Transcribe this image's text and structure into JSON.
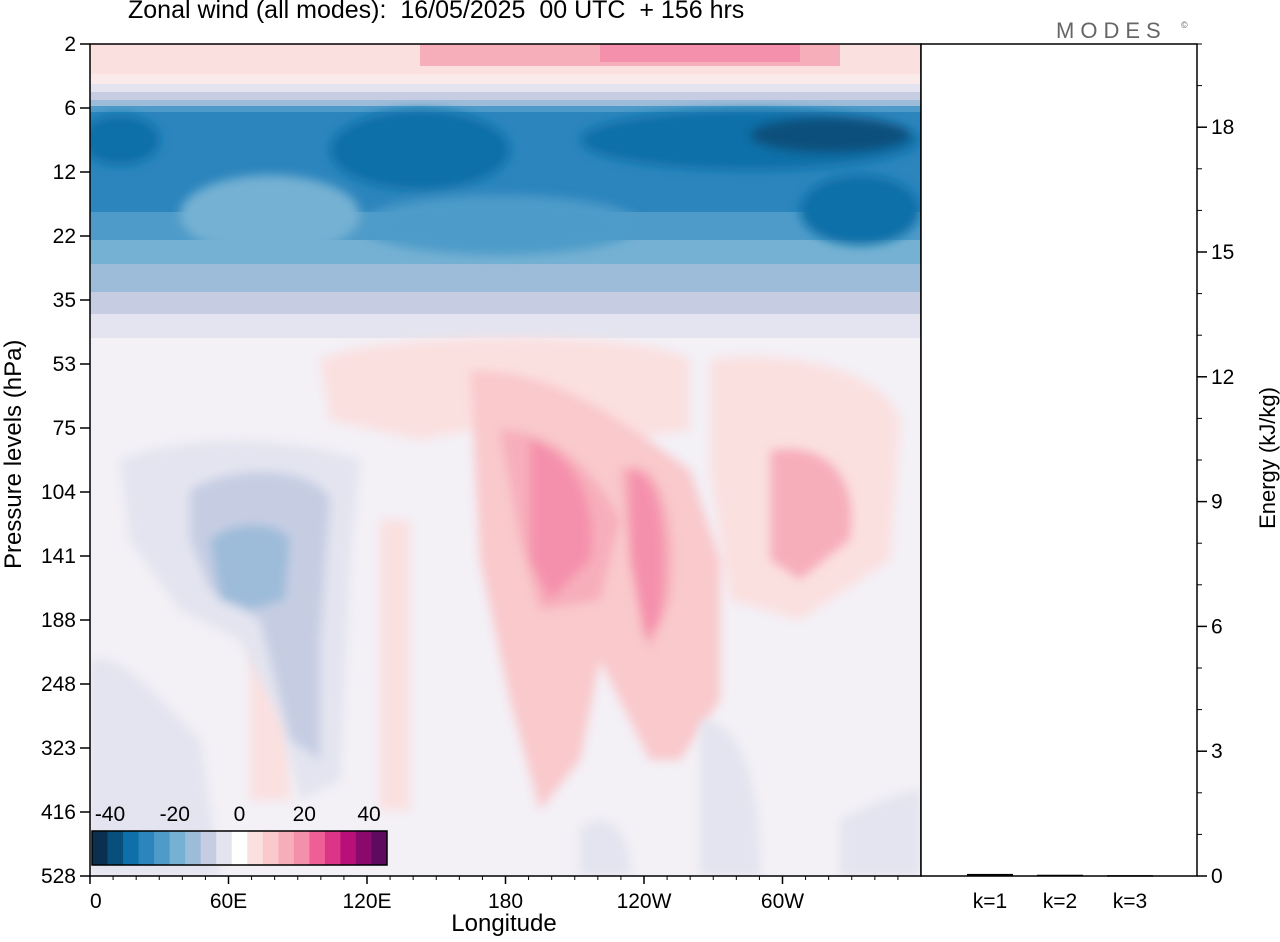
{
  "chart_data": [
    {
      "type": "heatmap",
      "title": "Zonal wind (all modes):  16/05/2025  00 UTC  + 156 hrs",
      "xlabel": "Longitude",
      "ylabel": "Pressure levels (hPa)",
      "x_ticks": [
        "0",
        "60E",
        "120E",
        "180",
        "120W",
        "60W"
      ],
      "y_ticks": [
        "2",
        "6",
        "12",
        "22",
        "35",
        "53",
        "75",
        "104",
        "141",
        "188",
        "248",
        "323",
        "416",
        "528"
      ],
      "colorbar": {
        "tick_labels": [
          "-40",
          "-20",
          "0",
          "20",
          "40"
        ],
        "colors": [
          "#0b2f4f",
          "#094f7b",
          "#0f6fa8",
          "#2c85bd",
          "#4e9bc9",
          "#75b1d3",
          "#9dbcd9",
          "#c6cde3",
          "#e3e4ef",
          "#ffffff",
          "#fbe0e0",
          "#f9c9cc",
          "#f7aebb",
          "#f590ac",
          "#ef5f96",
          "#dc3486",
          "#b90f78",
          "#8a0a6b",
          "#5e0a5f"
        ]
      }
    },
    {
      "type": "bar",
      "ylabel": "Energy (kJ/kg)",
      "ylim": [
        0,
        20
      ],
      "y_ticks": [
        "0",
        "3",
        "6",
        "9",
        "12",
        "15",
        "18"
      ],
      "categories": [
        "k=1",
        "k=2",
        "k=3"
      ],
      "values": [
        0.05,
        0.03,
        0.02
      ]
    }
  ],
  "brand": "MODES",
  "brand_mark": "©"
}
